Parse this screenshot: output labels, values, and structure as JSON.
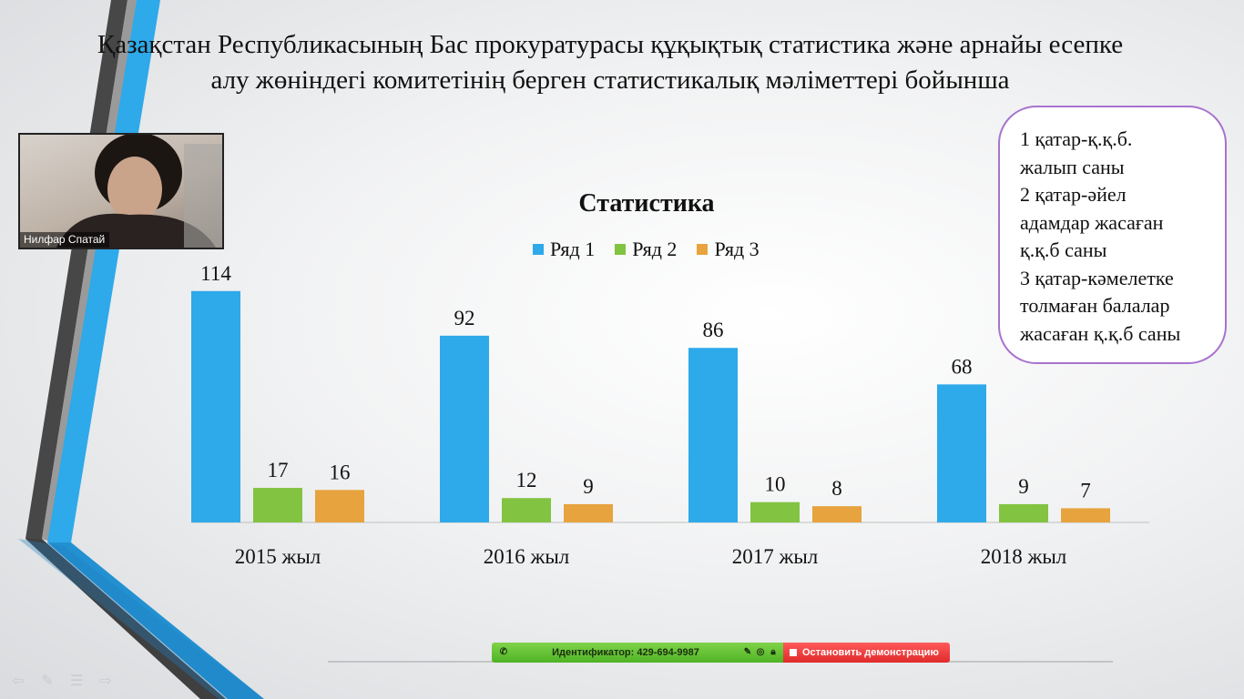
{
  "slide": {
    "title": "Қазақстан Республикасының Бас прокуратурасы құқықтық статистика және арнайы есепке алу жөніндегі комитетінің берген статистикалық мәліметтері бойынша",
    "note_lines": [
      "1 қатар-қ.қ.б.",
      "жалып саны",
      "2 қатар-әйел",
      "адамдар жасаған",
      "қ.қ.б саны",
      "3 қатар-кәмелетке",
      "толмаған балалар",
      "жасаған қ.қ.б саны"
    ]
  },
  "webcam": {
    "participant_name": "Нилфар Спатай"
  },
  "zoom_bar": {
    "meeting_id": "Идентификатор: 429-694-9987",
    "stop_share_label": "Остановить демонстрацию",
    "icons": [
      "phone-icon",
      "mic-icon",
      "record-icon",
      "lock-icon",
      "stop-icon"
    ],
    "left_color": "#5cc02d",
    "right_color": "#e83a3a"
  },
  "colors": {
    "accent_blue": "#2ea9ea",
    "dark_stripe": "#4a4a4a"
  },
  "chart_data": {
    "type": "bar",
    "title": "Статистика",
    "categories": [
      "2015 жыл",
      "2016 жыл",
      "2017 жыл",
      "2018 жыл"
    ],
    "series": [
      {
        "name": "Ряд 1",
        "color": "#2ea9ea",
        "values": [
          114,
          92,
          86,
          68
        ]
      },
      {
        "name": "Ряд 2",
        "color": "#82c341",
        "values": [
          17,
          12,
          10,
          9
        ]
      },
      {
        "name": "Ряд 3",
        "color": "#e7a33e",
        "values": [
          16,
          9,
          8,
          7
        ]
      }
    ],
    "data_labels": true,
    "legend_position": "top",
    "grid": false
  }
}
